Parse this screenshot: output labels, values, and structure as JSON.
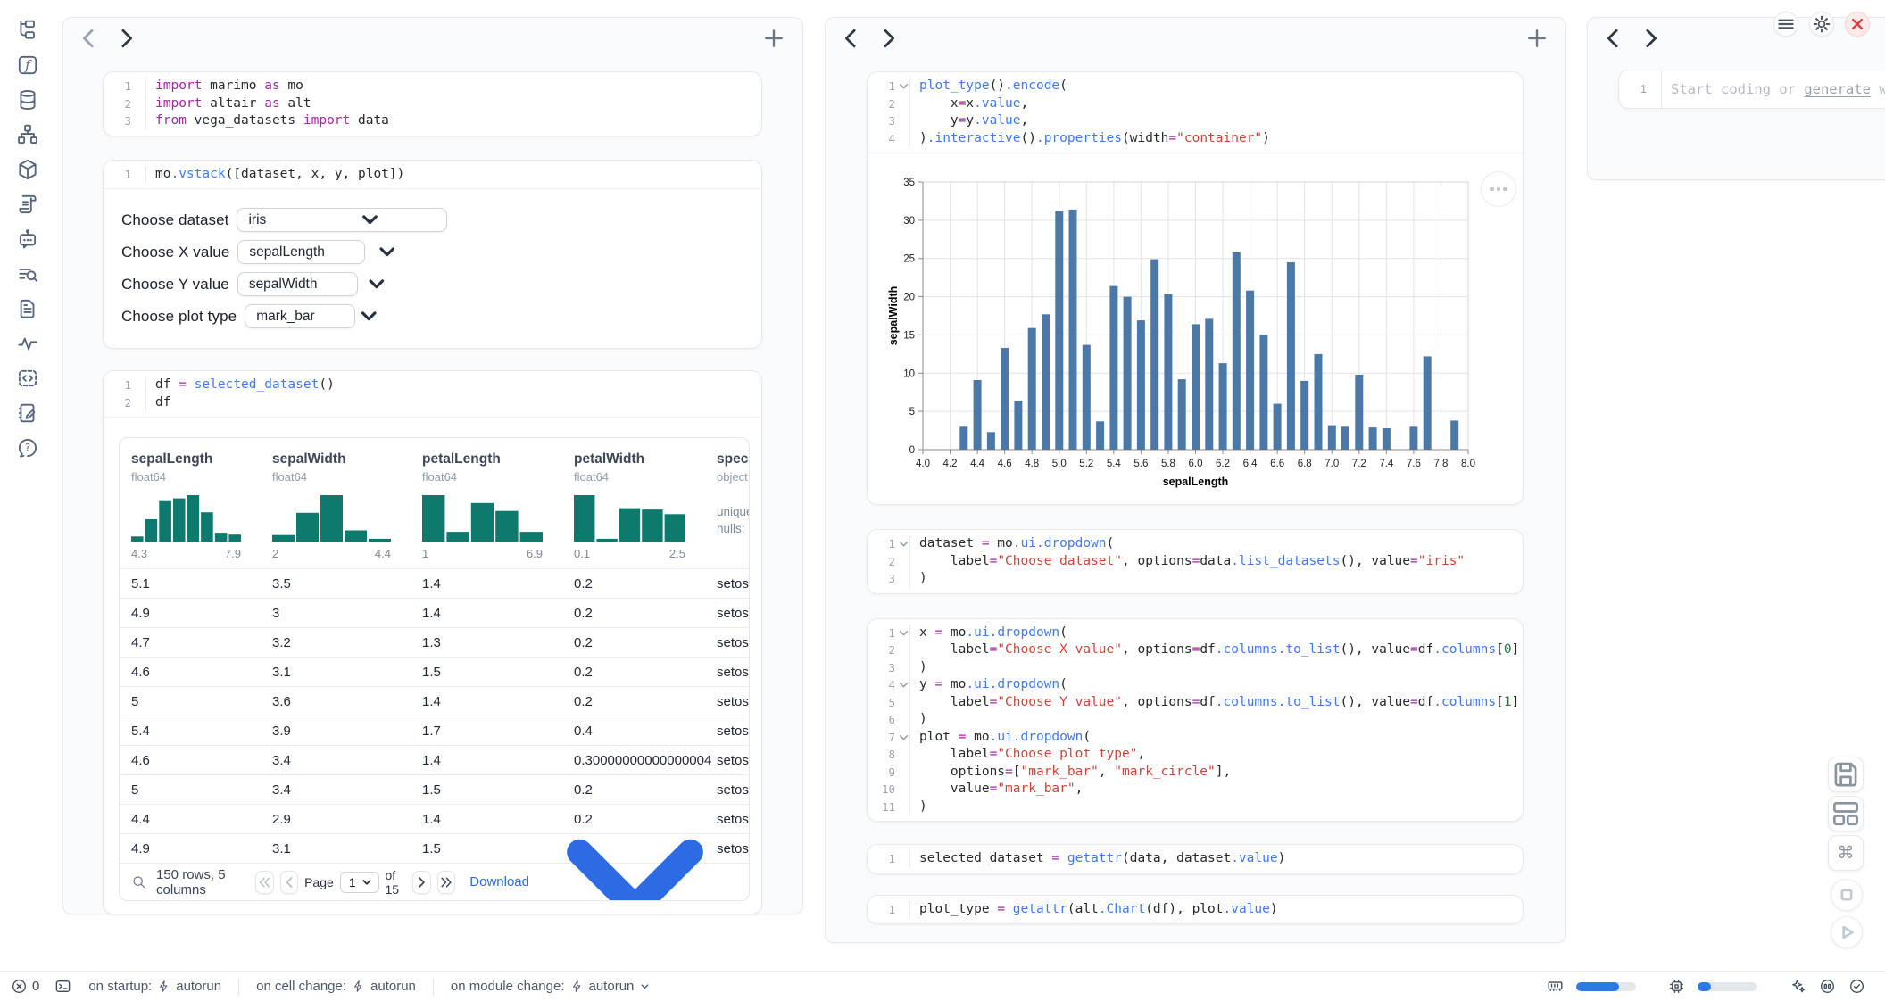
{
  "colors": {
    "accent": "#2d79e8",
    "chart_bar": "#4c78a8",
    "histogram": "#0e7a6d",
    "error": "#dc3d43"
  },
  "sidebar": {
    "icons": [
      "file-tree",
      "functions",
      "datasources",
      "dependency-graph",
      "packages",
      "documentation",
      "ai-chat",
      "logs",
      "outline",
      "tracing",
      "snippets",
      "scratchpad",
      "help"
    ]
  },
  "topbar": {
    "buttons": [
      "menu",
      "settings",
      "shutdown"
    ]
  },
  "left_panel": {
    "cells": [
      {
        "name": "imports-cell",
        "lines": [
          {
            "seg": [
              [
                "kw",
                "import"
              ],
              [
                "tx",
                " marimo "
              ],
              [
                "kw",
                "as"
              ],
              [
                "tx",
                " mo"
              ]
            ]
          },
          {
            "seg": [
              [
                "kw",
                "import"
              ],
              [
                "tx",
                " altair "
              ],
              [
                "kw",
                "as"
              ],
              [
                "tx",
                " alt"
              ]
            ]
          },
          {
            "seg": [
              [
                "kw",
                "from"
              ],
              [
                "tx",
                " vega_datasets "
              ],
              [
                "kw",
                "import"
              ],
              [
                "tx",
                " data"
              ]
            ]
          }
        ]
      },
      {
        "name": "controls-cell",
        "output": "dropdowns",
        "lines": [
          {
            "seg": [
              [
                "tx",
                "mo"
              ],
              [
                "fn",
                ".vstack"
              ],
              [
                "tx",
                "([dataset, x, y, plot])"
              ]
            ]
          }
        ]
      },
      {
        "name": "dataframe-cell",
        "output": "table",
        "lines": [
          {
            "seg": [
              [
                "tx",
                "df "
              ],
              [
                "op",
                "="
              ],
              [
                "tx",
                " "
              ],
              [
                "fn",
                "selected_dataset"
              ],
              [
                "tx",
                "()"
              ]
            ]
          },
          {
            "seg": [
              [
                "tx",
                "df"
              ]
            ]
          }
        ]
      }
    ],
    "dropdowns": [
      {
        "label": "Choose dataset",
        "value": "iris",
        "wide": true
      },
      {
        "label": "Choose X value",
        "value": "sepalLength"
      },
      {
        "label": "Choose Y value",
        "value": "sepalWidth"
      },
      {
        "label": "Choose plot type",
        "value": "mark_bar"
      }
    ],
    "table": {
      "columns": [
        {
          "name": "sepalLength",
          "type": "float64",
          "min": "4.3",
          "max": "7.9",
          "hist": [
            0.11,
            0.48,
            0.89,
            0.93,
            1.0,
            0.63,
            0.19,
            0.15
          ]
        },
        {
          "name": "sepalWidth",
          "type": "float64",
          "min": "2",
          "max": "4.4",
          "hist": [
            0.14,
            0.62,
            1.0,
            0.24,
            0.06
          ]
        },
        {
          "name": "petalLength",
          "type": "float64",
          "min": "1",
          "max": "6.9",
          "hist": [
            1.0,
            0.21,
            0.83,
            0.66,
            0.21
          ]
        },
        {
          "name": "petalWidth",
          "type": "float64",
          "min": "0.1",
          "max": "2.5",
          "hist": [
            1.0,
            0.06,
            0.72,
            0.69,
            0.59
          ]
        },
        {
          "name": "species",
          "type": "object",
          "stats": [
            "unique:",
            "nulls:"
          ]
        }
      ],
      "rows": [
        [
          "5.1",
          "3.5",
          "1.4",
          "0.2",
          "setosa"
        ],
        [
          "4.9",
          "3",
          "1.4",
          "0.2",
          "setosa"
        ],
        [
          "4.7",
          "3.2",
          "1.3",
          "0.2",
          "setosa"
        ],
        [
          "4.6",
          "3.1",
          "1.5",
          "0.2",
          "setosa"
        ],
        [
          "5",
          "3.6",
          "1.4",
          "0.2",
          "setosa"
        ],
        [
          "5.4",
          "3.9",
          "1.7",
          "0.4",
          "setosa"
        ],
        [
          "4.6",
          "3.4",
          "1.4",
          "0.30000000000000004",
          "setosa"
        ],
        [
          "5",
          "3.4",
          "1.5",
          "0.2",
          "setosa"
        ],
        [
          "4.4",
          "2.9",
          "1.4",
          "0.2",
          "setosa"
        ],
        [
          "4.9",
          "3.1",
          "1.5",
          "0.1",
          "setosa"
        ]
      ],
      "footer": {
        "summary": "150 rows, 5 columns",
        "page_label": "Page",
        "page_value": "1",
        "of_label": "of 15",
        "download_label": "Download"
      }
    }
  },
  "middle_panel": {
    "cells": [
      {
        "name": "plot-cell",
        "output": "chart",
        "lines": [
          {
            "fold": true,
            "seg": [
              [
                "fn",
                "plot_type"
              ],
              [
                "tx",
                "()"
              ],
              [
                "fn",
                ".encode"
              ],
              [
                "tx",
                "("
              ]
            ]
          },
          {
            "seg": [
              [
                "tx",
                "    x"
              ],
              [
                "op",
                "="
              ],
              [
                "tx",
                "x"
              ],
              [
                "fn",
                ".value"
              ],
              [
                "tx",
                ","
              ]
            ]
          },
          {
            "seg": [
              [
                "tx",
                "    y"
              ],
              [
                "op",
                "="
              ],
              [
                "tx",
                "y"
              ],
              [
                "fn",
                ".value"
              ],
              [
                "tx",
                ","
              ]
            ]
          },
          {
            "seg": [
              [
                "tx",
                ")"
              ],
              [
                "fn",
                ".interactive"
              ],
              [
                "tx",
                "()"
              ],
              [
                "fn",
                ".properties"
              ],
              [
                "tx",
                "(width"
              ],
              [
                "op",
                "="
              ],
              [
                "st",
                "\"container\""
              ],
              [
                "tx",
                ")"
              ]
            ]
          }
        ]
      },
      {
        "name": "dataset-dropdown-cell",
        "lines": [
          {
            "fold": true,
            "seg": [
              [
                "tx",
                "dataset "
              ],
              [
                "op",
                "="
              ],
              [
                "tx",
                " mo"
              ],
              [
                "fn",
                ".ui.dropdown"
              ],
              [
                "tx",
                "("
              ]
            ]
          },
          {
            "seg": [
              [
                "tx",
                "    label"
              ],
              [
                "op",
                "="
              ],
              [
                "st",
                "\"Choose dataset\""
              ],
              [
                "tx",
                ", options"
              ],
              [
                "op",
                "="
              ],
              [
                "tx",
                "data"
              ],
              [
                "fn",
                ".list_datasets"
              ],
              [
                "tx",
                "(), value"
              ],
              [
                "op",
                "="
              ],
              [
                "st",
                "\"iris\""
              ]
            ]
          },
          {
            "seg": [
              [
                "tx",
                ")"
              ]
            ]
          }
        ]
      },
      {
        "name": "xy-plot-dropdowns-cell",
        "lines": [
          {
            "fold": true,
            "seg": [
              [
                "tx",
                "x "
              ],
              [
                "op",
                "="
              ],
              [
                "tx",
                " mo"
              ],
              [
                "fn",
                ".ui.dropdown"
              ],
              [
                "tx",
                "("
              ]
            ]
          },
          {
            "seg": [
              [
                "tx",
                "    label"
              ],
              [
                "op",
                "="
              ],
              [
                "st",
                "\"Choose X value\""
              ],
              [
                "tx",
                ", options"
              ],
              [
                "op",
                "="
              ],
              [
                "tx",
                "df"
              ],
              [
                "fn",
                ".columns.to_list"
              ],
              [
                "tx",
                "(), value"
              ],
              [
                "op",
                "="
              ],
              [
                "tx",
                "df"
              ],
              [
                "fn",
                ".columns"
              ],
              [
                "tx",
                "["
              ],
              [
                "nu",
                "0"
              ],
              [
                "tx",
                "]"
              ]
            ]
          },
          {
            "seg": [
              [
                "tx",
                ")"
              ]
            ]
          },
          {
            "fold": true,
            "seg": [
              [
                "tx",
                "y "
              ],
              [
                "op",
                "="
              ],
              [
                "tx",
                " mo"
              ],
              [
                "fn",
                ".ui.dropdown"
              ],
              [
                "tx",
                "("
              ]
            ]
          },
          {
            "seg": [
              [
                "tx",
                "    label"
              ],
              [
                "op",
                "="
              ],
              [
                "st",
                "\"Choose Y value\""
              ],
              [
                "tx",
                ", options"
              ],
              [
                "op",
                "="
              ],
              [
                "tx",
                "df"
              ],
              [
                "fn",
                ".columns.to_list"
              ],
              [
                "tx",
                "(), value"
              ],
              [
                "op",
                "="
              ],
              [
                "tx",
                "df"
              ],
              [
                "fn",
                ".columns"
              ],
              [
                "tx",
                "["
              ],
              [
                "nu",
                "1"
              ],
              [
                "tx",
                "]"
              ]
            ]
          },
          {
            "seg": [
              [
                "tx",
                ")"
              ]
            ]
          },
          {
            "fold": true,
            "seg": [
              [
                "tx",
                "plot "
              ],
              [
                "op",
                "="
              ],
              [
                "tx",
                " mo"
              ],
              [
                "fn",
                ".ui.dropdown"
              ],
              [
                "tx",
                "("
              ]
            ]
          },
          {
            "seg": [
              [
                "tx",
                "    label"
              ],
              [
                "op",
                "="
              ],
              [
                "st",
                "\"Choose plot type\""
              ],
              [
                "tx",
                ","
              ]
            ]
          },
          {
            "seg": [
              [
                "tx",
                "    options"
              ],
              [
                "op",
                "="
              ],
              [
                "tx",
                "["
              ],
              [
                "st",
                "\"mark_bar\""
              ],
              [
                "tx",
                ", "
              ],
              [
                "st",
                "\"mark_circle\""
              ],
              [
                "tx",
                "],"
              ]
            ]
          },
          {
            "seg": [
              [
                "tx",
                "    value"
              ],
              [
                "op",
                "="
              ],
              [
                "st",
                "\"mark_bar\""
              ],
              [
                "tx",
                ","
              ]
            ]
          },
          {
            "seg": [
              [
                "tx",
                ")"
              ]
            ]
          }
        ]
      },
      {
        "name": "selected-dataset-cell",
        "lines": [
          {
            "seg": [
              [
                "tx",
                "selected_dataset "
              ],
              [
                "op",
                "="
              ],
              [
                "tx",
                " "
              ],
              [
                "fn",
                "getattr"
              ],
              [
                "tx",
                "(data, dataset"
              ],
              [
                "fn",
                ".value"
              ],
              [
                "tx",
                ")"
              ]
            ]
          }
        ]
      },
      {
        "name": "plot-type-cell",
        "lines": [
          {
            "seg": [
              [
                "tx",
                "plot_type "
              ],
              [
                "op",
                "="
              ],
              [
                "tx",
                " "
              ],
              [
                "fn",
                "getattr"
              ],
              [
                "tx",
                "(alt"
              ],
              [
                "fn",
                ".Chart"
              ],
              [
                "tx",
                "(df), plot"
              ],
              [
                "fn",
                ".value"
              ],
              [
                "tx",
                ")"
              ]
            ]
          }
        ]
      }
    ]
  },
  "right_panel": {
    "line_number": "1",
    "placeholder": {
      "pre": "Start coding or ",
      "link": "generate",
      "post": " with AI"
    }
  },
  "float_buttons": [
    "save",
    "layout",
    "command"
  ],
  "run_buttons": [
    "stop",
    "run"
  ],
  "statusbar": {
    "error_count": "0",
    "items": [
      {
        "label": "on startup:",
        "value": "autorun",
        "chevron": false
      },
      {
        "label": "on cell change:",
        "value": "autorun",
        "chevron": false
      },
      {
        "label": "on module change:",
        "value": "autorun",
        "chevron": true
      }
    ],
    "memory_pct": 72,
    "cpu_pct": 22
  },
  "chart_data": {
    "type": "bar",
    "title": "",
    "xlabel": "sepalLength",
    "ylabel": "sepalWidth",
    "xlim": [
      4.0,
      8.0
    ],
    "ylim": [
      0,
      35
    ],
    "grid": true,
    "bar_color": "#4c78a8",
    "x_ticks": [
      "4.0",
      "4.2",
      "4.4",
      "4.6",
      "4.8",
      "5.0",
      "5.2",
      "5.4",
      "5.6",
      "5.8",
      "6.0",
      "6.2",
      "6.4",
      "6.6",
      "6.8",
      "7.0",
      "7.2",
      "7.4",
      "7.6",
      "7.8",
      "8.0"
    ],
    "y_ticks": [
      "0",
      "5",
      "10",
      "15",
      "20",
      "25",
      "30",
      "35"
    ],
    "x": [
      4.3,
      4.4,
      4.5,
      4.6,
      4.7,
      4.8,
      4.9,
      5.0,
      5.1,
      5.2,
      5.3,
      5.4,
      5.5,
      5.6,
      5.7,
      5.8,
      5.9,
      6.0,
      6.1,
      6.2,
      6.3,
      6.4,
      6.5,
      6.6,
      6.7,
      6.8,
      6.9,
      7.0,
      7.1,
      7.2,
      7.3,
      7.4,
      7.6,
      7.7,
      7.9
    ],
    "values": [
      3.0,
      9.1,
      2.3,
      13.3,
      6.4,
      15.9,
      17.7,
      31.2,
      31.4,
      13.7,
      3.7,
      21.4,
      20.0,
      16.9,
      24.9,
      20.3,
      9.2,
      16.4,
      17.1,
      11.3,
      25.8,
      20.8,
      15.0,
      6.0,
      24.5,
      9.0,
      12.5,
      3.2,
      3.0,
      9.8,
      2.9,
      2.8,
      3.0,
      12.2,
      3.8
    ]
  }
}
